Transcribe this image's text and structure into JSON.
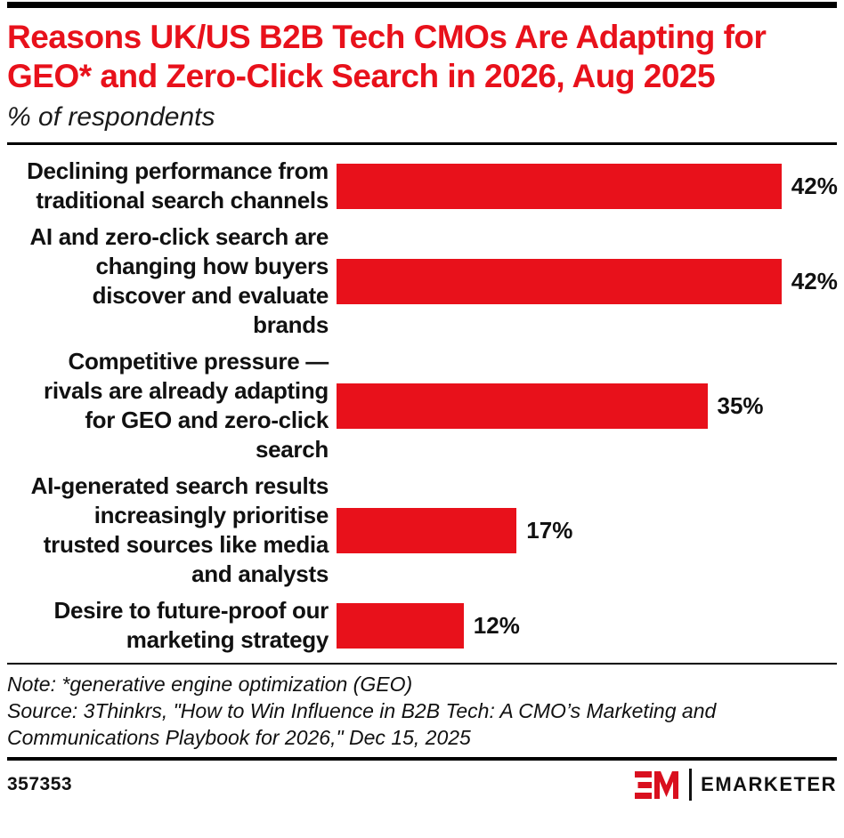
{
  "header": {
    "title": "Reasons UK/US B2B Tech CMOs Are Adapting for GEO* and Zero-Click Search in 2026, Aug 2025",
    "subtitle": "% of respondents"
  },
  "chart_data": {
    "type": "bar",
    "orientation": "horizontal",
    "unit": "%",
    "categories": [
      "Declining performance from\ntraditional search channels",
      "AI and zero-click search are\nchanging how buyers\ndiscover and evaluate\nbrands",
      "Competitive pressure —\nrivals are already adapting\nfor GEO and zero-click\nsearch",
      "AI-generated search results\nincreasingly prioritise\ntrusted sources like media\nand analysts",
      "Desire to future-proof our\nmarketing strategy"
    ],
    "values": [
      42,
      42,
      35,
      17,
      12
    ],
    "value_labels": [
      "42%",
      "42%",
      "35%",
      "17%",
      "12%"
    ],
    "title": "Reasons UK/US B2B Tech CMOs Are Adapting for GEO* and Zero-Click Search in 2026, Aug 2025",
    "xlabel": "",
    "ylabel": "",
    "xlim": [
      0,
      47
    ],
    "grid": false,
    "legend": false,
    "data_labels_position": "right-of-bar"
  },
  "notes": {
    "note_line": "Note: *generative engine optimization (GEO)",
    "source_line": "Source: 3Thinkrs, \"How to Win Influence in B2B Tech: A CMO’s Marketing and Communications Playbook for 2026,\" Dec 15, 2025"
  },
  "footer": {
    "chart_id": "357353",
    "brand_name": "EMARKETER"
  },
  "colors": {
    "bar": "#e8111b",
    "title": "#e8111b",
    "logo_red": "#d9101f",
    "text": "#111111",
    "rule": "#000000"
  }
}
